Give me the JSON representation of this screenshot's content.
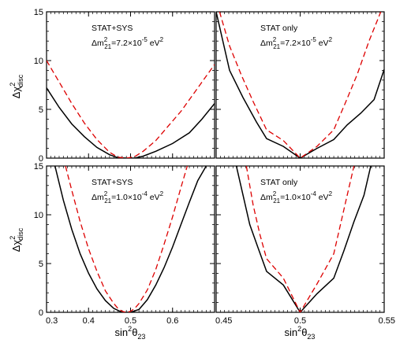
{
  "figure": {
    "y_axis_title": {
      "main": "Δχ",
      "sup": "2",
      "sub": "disc"
    },
    "x_axis_title": {
      "main": "sin",
      "sup": "2",
      "tail": "θ",
      "sub": "23"
    }
  },
  "chart_data": [
    {
      "type": "line",
      "panel": "top-left",
      "label_line1": "STAT+SYS",
      "label_line2": {
        "main": "Δm",
        "sup": "2",
        "sub": "21",
        "tail": "=7.2×10",
        "exp": "-5",
        "unit": " eV",
        "unit_sup": "2"
      },
      "xlim": [
        0.3,
        0.7
      ],
      "ylim": [
        0,
        15
      ],
      "x_ticks": [
        0.3,
        0.4,
        0.5,
        0.6
      ],
      "y_ticks": [
        0,
        5,
        10,
        15
      ],
      "tick_labels_x": false,
      "tick_labels_y": true,
      "series": [
        {
          "style": "solid",
          "color": "#000000",
          "x": [
            0.3,
            0.33,
            0.36,
            0.39,
            0.42,
            0.45,
            0.47,
            0.49,
            0.51,
            0.53,
            0.56,
            0.6,
            0.64,
            0.67,
            0.7
          ],
          "y": [
            7.2,
            5.2,
            3.5,
            2.2,
            1.1,
            0.35,
            0.05,
            0.0,
            0.0,
            0.2,
            0.7,
            1.5,
            2.6,
            4.0,
            5.6
          ]
        },
        {
          "style": "dashed",
          "color": "#dd0000",
          "x": [
            0.3,
            0.33,
            0.36,
            0.39,
            0.42,
            0.45,
            0.47,
            0.49,
            0.51,
            0.53,
            0.56,
            0.59,
            0.62,
            0.65,
            0.68,
            0.7
          ],
          "y": [
            10.0,
            7.8,
            5.6,
            3.6,
            1.9,
            0.6,
            0.1,
            0.0,
            0.15,
            0.7,
            1.8,
            3.3,
            4.8,
            6.6,
            8.4,
            9.6
          ]
        }
      ]
    },
    {
      "type": "line",
      "panel": "top-right",
      "label_line1": "STAT only",
      "label_line2": {
        "main": "Δm",
        "sup": "2",
        "sub": "21",
        "tail": "=7.2×10",
        "exp": "-5",
        "unit": " eV",
        "unit_sup": "2"
      },
      "xlim": [
        0.45,
        0.55
      ],
      "ylim": [
        0,
        15
      ],
      "x_ticks": [
        0.45,
        0.5,
        0.55
      ],
      "y_ticks": [
        0,
        5,
        10,
        15
      ],
      "tick_labels_x": false,
      "tick_labels_y": false,
      "series": [
        {
          "style": "solid",
          "color": "#000000",
          "x": [
            0.45,
            0.458,
            0.466,
            0.474,
            0.48,
            0.49,
            0.5,
            0.51,
            0.52,
            0.528,
            0.536,
            0.544,
            0.55
          ],
          "y": [
            15.0,
            9.0,
            6.2,
            3.7,
            2.0,
            1.2,
            0.0,
            1.0,
            1.9,
            3.4,
            4.6,
            6.0,
            9.1
          ]
        },
        {
          "style": "dashed",
          "color": "#dd0000",
          "x": [
            0.452,
            0.458,
            0.465,
            0.472,
            0.48,
            0.49,
            0.5,
            0.51,
            0.52,
            0.527,
            0.534,
            0.541,
            0.548
          ],
          "y": [
            15.0,
            11.5,
            8.5,
            5.8,
            2.9,
            1.8,
            0.0,
            1.2,
            2.9,
            5.7,
            8.6,
            12.0,
            15.0
          ]
        }
      ]
    },
    {
      "type": "line",
      "panel": "bottom-left",
      "label_line1": "STAT+SYS",
      "label_line2": {
        "main": "Δm",
        "sup": "2",
        "sub": "21",
        "tail": "=1.0×10",
        "exp": "-4",
        "unit": " eV",
        "unit_sup": "2"
      },
      "xlim": [
        0.3,
        0.7
      ],
      "ylim": [
        0,
        15
      ],
      "x_ticks": [
        0.3,
        0.4,
        0.5,
        0.6
      ],
      "y_ticks": [
        0,
        5,
        10,
        15
      ],
      "tick_labels_x": true,
      "tick_labels_y": true,
      "series": [
        {
          "style": "solid",
          "color": "#000000",
          "x": [
            0.32,
            0.34,
            0.36,
            0.38,
            0.4,
            0.42,
            0.44,
            0.46,
            0.48,
            0.5,
            0.52,
            0.54,
            0.56,
            0.58,
            0.6,
            0.62,
            0.64,
            0.66,
            0.68
          ],
          "y": [
            15.0,
            11.5,
            8.5,
            6.0,
            4.0,
            2.4,
            1.2,
            0.4,
            0.0,
            0.0,
            0.3,
            1.3,
            2.8,
            4.6,
            6.7,
            9.0,
            11.3,
            13.5,
            15.0
          ]
        },
        {
          "style": "dashed",
          "color": "#dd0000",
          "x": [
            0.345,
            0.36,
            0.38,
            0.4,
            0.42,
            0.44,
            0.46,
            0.47,
            0.48,
            0.49,
            0.5,
            0.51,
            0.52,
            0.54,
            0.56,
            0.58,
            0.6,
            0.62,
            0.635
          ],
          "y": [
            15.0,
            12.5,
            9.3,
            6.5,
            4.2,
            2.2,
            0.9,
            0.4,
            0.1,
            0.0,
            0.1,
            0.4,
            0.9,
            2.3,
            4.4,
            7.0,
            9.8,
            12.8,
            15.0
          ]
        }
      ]
    },
    {
      "type": "line",
      "panel": "bottom-right",
      "label_line1": "STAT only",
      "label_line2": {
        "main": "Δm",
        "sup": "2",
        "sub": "21",
        "tail": "=1.0×10",
        "exp": "-4",
        "unit": " eV",
        "unit_sup": "2"
      },
      "xlim": [
        0.45,
        0.55
      ],
      "ylim": [
        0,
        15
      ],
      "x_ticks": [
        0.45,
        0.5,
        0.55
      ],
      "y_ticks": [
        0,
        5,
        10,
        15
      ],
      "tick_labels_x": true,
      "tick_labels_y": false,
      "x_tick_labels": [
        "0.45",
        "0.5",
        "0.55"
      ],
      "series": [
        {
          "style": "solid",
          "color": "#000000",
          "x": [
            0.462,
            0.466,
            0.47,
            0.475,
            0.48,
            0.49,
            0.5,
            0.51,
            0.52,
            0.526,
            0.532,
            0.538,
            0.542
          ],
          "y": [
            15.0,
            12.0,
            9.0,
            6.6,
            4.2,
            2.8,
            0.0,
            1.9,
            3.5,
            6.3,
            9.3,
            12.0,
            15.0
          ]
        },
        {
          "style": "dashed",
          "color": "#dd0000",
          "x": [
            0.468,
            0.472,
            0.476,
            0.48,
            0.49,
            0.5,
            0.51,
            0.52,
            0.524,
            0.528,
            0.532
          ],
          "y": [
            15.0,
            11.0,
            8.0,
            5.5,
            3.5,
            0.0,
            2.9,
            6.0,
            9.0,
            12.0,
            15.0
          ]
        }
      ]
    }
  ]
}
